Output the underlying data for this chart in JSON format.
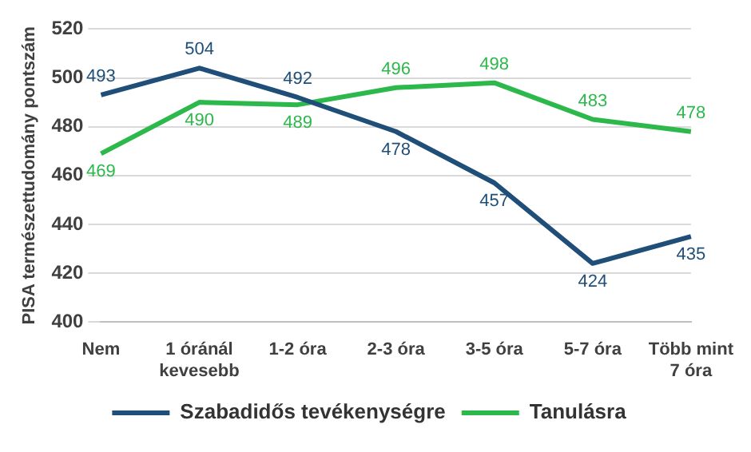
{
  "chart_data": {
    "type": "line",
    "ylabel": "PISA természettudomány pontszám",
    "categories": [
      "Nem",
      "1 óránál kevesebb",
      "1-2 óra",
      "2-3 óra",
      "3-5 óra",
      "5-7 óra",
      "Több mint 7 óra"
    ],
    "series": [
      {
        "name": "Szabadidős tevékenységre",
        "color": "#1f4e79",
        "values": [
          493,
          504,
          492,
          478,
          457,
          424,
          435
        ]
      },
      {
        "name": "Tanulásra",
        "color": "#2db84b",
        "values": [
          469,
          490,
          489,
          496,
          498,
          483,
          478
        ]
      }
    ],
    "ylim": [
      400,
      520
    ],
    "yticks": [
      400,
      420,
      440,
      460,
      480,
      500,
      520
    ],
    "grid": "y",
    "legend": "bottom",
    "data_labels": true,
    "marker": "none",
    "line_style": "solid"
  }
}
